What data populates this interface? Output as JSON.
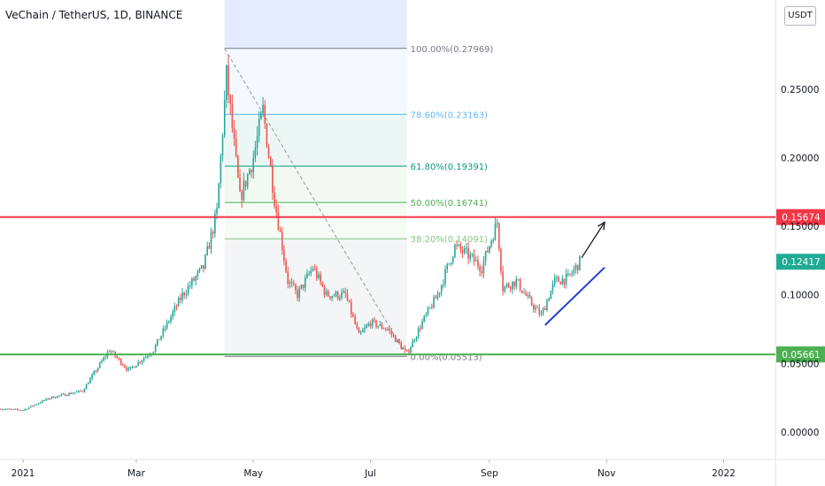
{
  "header": {
    "symbol": "VeChain / TetherUS, 1D, BINANCE",
    "unit": "USDT"
  },
  "chart_data": {
    "type": "candlestick",
    "title": "VeChain / TetherUS, 1D, BINANCE",
    "xlabel": "",
    "ylabel": "",
    "unit": "USDT",
    "ylim": [
      -0.02,
      0.315
    ],
    "y_ticks": [
      0.0,
      0.05,
      0.1,
      0.15,
      0.2,
      0.25
    ],
    "y_tick_labels": [
      "0.00000",
      "0.05000",
      "0.10000",
      "0.15000",
      "0.20000",
      "0.25000"
    ],
    "x_ticks": [
      {
        "x": "2021-01-01",
        "label": "2021"
      },
      {
        "x": "2021-03-01",
        "label": "Mar"
      },
      {
        "x": "2021-05-01",
        "label": "May"
      },
      {
        "x": "2021-07-01",
        "label": "Jul"
      },
      {
        "x": "2021-09-01",
        "label": "Sep"
      },
      {
        "x": "2021-11-01",
        "label": "Nov"
      },
      {
        "x": "2022-01-01",
        "label": "2022"
      }
    ],
    "xlim": [
      "2020-12-20",
      "2022-01-28"
    ],
    "price_anchors": [
      {
        "date": "2020-12-20",
        "price": 0.017
      },
      {
        "date": "2021-01-01",
        "price": 0.016
      },
      {
        "date": "2021-01-15",
        "price": 0.025
      },
      {
        "date": "2021-02-01",
        "price": 0.03
      },
      {
        "date": "2021-02-15",
        "price": 0.06
      },
      {
        "date": "2021-02-25",
        "price": 0.045
      },
      {
        "date": "2021-03-10",
        "price": 0.06
      },
      {
        "date": "2021-03-25",
        "price": 0.1
      },
      {
        "date": "2021-04-05",
        "price": 0.12
      },
      {
        "date": "2021-04-12",
        "price": 0.16
      },
      {
        "date": "2021-04-17",
        "price": 0.26
      },
      {
        "date": "2021-04-24",
        "price": 0.17
      },
      {
        "date": "2021-05-01",
        "price": 0.2
      },
      {
        "date": "2021-05-06",
        "price": 0.235
      },
      {
        "date": "2021-05-12",
        "price": 0.17
      },
      {
        "date": "2021-05-19",
        "price": 0.11
      },
      {
        "date": "2021-05-24",
        "price": 0.1
      },
      {
        "date": "2021-06-01",
        "price": 0.12
      },
      {
        "date": "2021-06-08",
        "price": 0.1
      },
      {
        "date": "2021-06-18",
        "price": 0.1
      },
      {
        "date": "2021-06-25",
        "price": 0.07
      },
      {
        "date": "2021-07-01",
        "price": 0.08
      },
      {
        "date": "2021-07-10",
        "price": 0.075
      },
      {
        "date": "2021-07-20",
        "price": 0.057
      },
      {
        "date": "2021-07-28",
        "price": 0.08
      },
      {
        "date": "2021-08-05",
        "price": 0.1
      },
      {
        "date": "2021-08-14",
        "price": 0.135
      },
      {
        "date": "2021-08-20",
        "price": 0.13
      },
      {
        "date": "2021-08-28",
        "price": 0.12
      },
      {
        "date": "2021-09-05",
        "price": 0.153
      },
      {
        "date": "2021-09-08",
        "price": 0.105
      },
      {
        "date": "2021-09-15",
        "price": 0.11
      },
      {
        "date": "2021-09-22",
        "price": 0.095
      },
      {
        "date": "2021-09-28",
        "price": 0.085
      },
      {
        "date": "2021-10-05",
        "price": 0.11
      },
      {
        "date": "2021-10-12",
        "price": 0.112
      },
      {
        "date": "2021-10-18",
        "price": 0.124
      }
    ],
    "fibonacci": {
      "start_date": "2021-04-16",
      "end_date": "2021-07-20",
      "levels": [
        {
          "ratio": 1.0,
          "price": 0.27969,
          "label": "100.00%(0.27969)",
          "color": "#787b86"
        },
        {
          "ratio": 0.786,
          "price": 0.23163,
          "label": "78.60%(0.23163)",
          "color": "#64b5f6"
        },
        {
          "ratio": 0.618,
          "price": 0.19391,
          "label": "61.80%(0.19391)",
          "color": "#089981"
        },
        {
          "ratio": 0.5,
          "price": 0.16741,
          "label": "50.00%(0.16741)",
          "color": "#4caf50"
        },
        {
          "ratio": 0.382,
          "price": 0.14091,
          "label": "38.20%(0.14091)",
          "color": "#81c784"
        },
        {
          "ratio": 0.0,
          "price": 0.05513,
          "label": "0.00%(0.05513)",
          "color": "#787b86"
        }
      ]
    },
    "horizontal_lines": [
      {
        "price": 0.15674,
        "label": "0.15674",
        "color": "#f23645"
      },
      {
        "price": 0.05661,
        "label": "0.05661",
        "color": "#4caf50"
      }
    ],
    "last_price": {
      "price": 0.12417,
      "label": "0.12417",
      "color": "#22ab94"
    },
    "trendline": {
      "start": {
        "date": "2021-09-30",
        "price": 0.078
      },
      "end": {
        "date": "2021-10-31",
        "price": 0.12
      },
      "color": "#1e3fcc"
    },
    "projection_arrow": {
      "start": {
        "date": "2021-10-19",
        "price": 0.127
      },
      "end": {
        "date": "2021-10-31",
        "price": 0.153
      },
      "color": "#131722"
    },
    "colors": {
      "up": "#26a69a",
      "down": "#ef5350",
      "axis_text": "#131722",
      "grid": "#e0e3eb"
    }
  }
}
